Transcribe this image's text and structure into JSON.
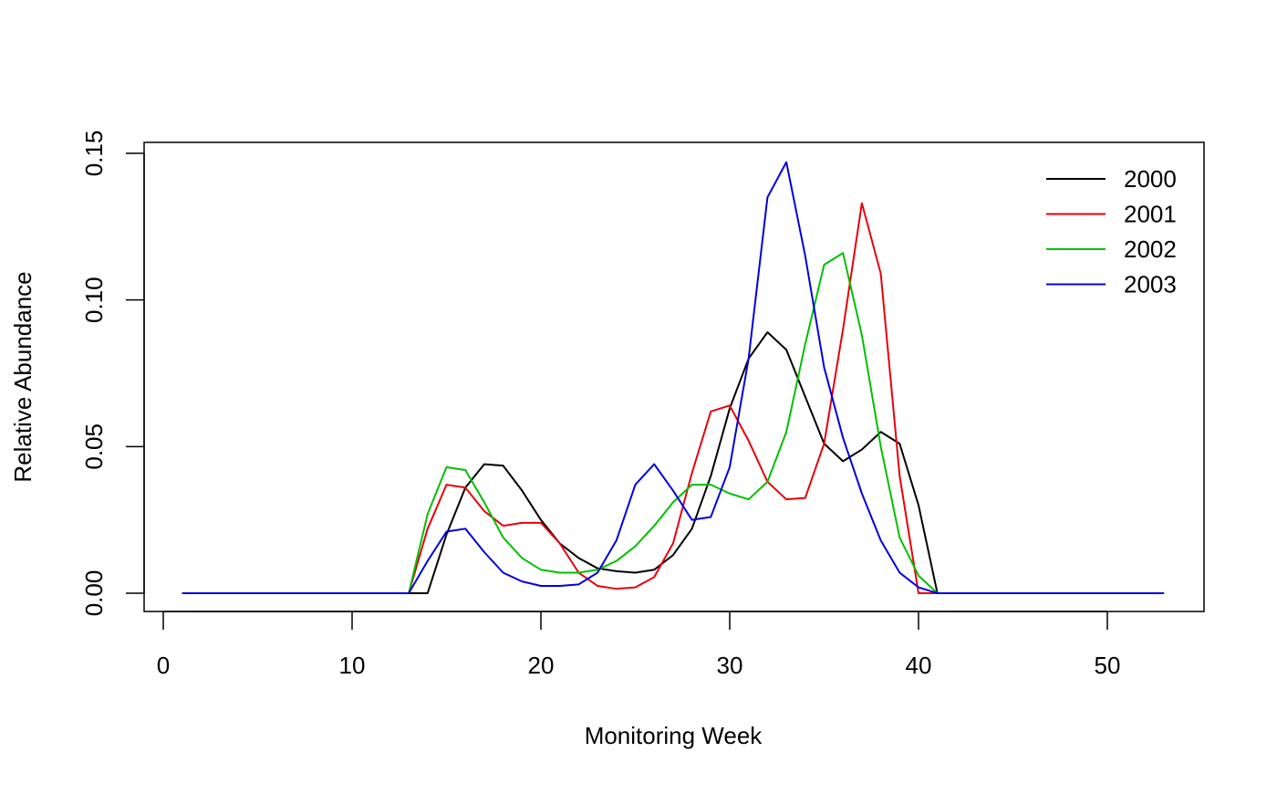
{
  "chart_data": {
    "type": "line",
    "title": "",
    "xlabel": "Monitoring Week",
    "ylabel": "Relative Abundance",
    "xlim": [
      0,
      55
    ],
    "ylim": [
      0,
      0.15
    ],
    "xticks": [
      0,
      10,
      20,
      30,
      40,
      50
    ],
    "yticks": [
      0.0,
      0.05,
      0.1,
      0.15
    ],
    "xtick_labels": [
      "0",
      "10",
      "20",
      "30",
      "40",
      "50"
    ],
    "ytick_labels": [
      "0.00",
      "0.05",
      "0.10",
      "0.15"
    ],
    "grid": false,
    "legend_position": "top-right",
    "x": [
      1,
      2,
      3,
      4,
      5,
      6,
      7,
      8,
      9,
      10,
      11,
      12,
      13,
      14,
      15,
      16,
      17,
      18,
      19,
      20,
      21,
      22,
      23,
      24,
      25,
      26,
      27,
      28,
      29,
      30,
      31,
      32,
      33,
      34,
      35,
      36,
      37,
      38,
      39,
      40,
      41,
      42,
      43,
      44,
      45,
      46,
      47,
      48,
      49,
      50,
      51,
      52,
      53
    ],
    "series": [
      {
        "name": "2000",
        "color": "#000000",
        "values": [
          0,
          0,
          0,
          0,
          0,
          0,
          0,
          0,
          0,
          0,
          0,
          0,
          0,
          0,
          0.02,
          0.036,
          0.044,
          0.0435,
          0.035,
          0.025,
          0.017,
          0.012,
          0.0085,
          0.0075,
          0.007,
          0.008,
          0.013,
          0.022,
          0.04,
          0.063,
          0.08,
          0.089,
          0.083,
          0.067,
          0.051,
          0.045,
          0.049,
          0.055,
          0.051,
          0.03,
          0,
          0,
          0,
          0,
          0,
          0,
          0,
          0,
          0,
          0,
          0,
          0,
          0
        ]
      },
      {
        "name": "2001",
        "color": "#e8000b",
        "values": [
          0,
          0,
          0,
          0,
          0,
          0,
          0,
          0,
          0,
          0,
          0,
          0,
          0,
          0.022,
          0.037,
          0.036,
          0.028,
          0.023,
          0.024,
          0.024,
          0.017,
          0.007,
          0.0025,
          0.0015,
          0.002,
          0.0055,
          0.017,
          0.041,
          0.062,
          0.064,
          0.052,
          0.038,
          0.032,
          0.0325,
          0.051,
          0.09,
          0.133,
          0.109,
          0.04,
          0,
          0,
          0,
          0,
          0,
          0,
          0,
          0,
          0,
          0,
          0,
          0,
          0,
          0
        ]
      },
      {
        "name": "2002",
        "color": "#00c000",
        "values": [
          0,
          0,
          0,
          0,
          0,
          0,
          0,
          0,
          0,
          0,
          0,
          0,
          0,
          0.027,
          0.043,
          0.042,
          0.031,
          0.019,
          0.012,
          0.008,
          0.007,
          0.007,
          0.008,
          0.011,
          0.016,
          0.023,
          0.031,
          0.037,
          0.037,
          0.034,
          0.032,
          0.038,
          0.055,
          0.085,
          0.112,
          0.116,
          0.088,
          0.05,
          0.019,
          0.006,
          0,
          0,
          0,
          0,
          0,
          0,
          0,
          0,
          0,
          0,
          0,
          0,
          0
        ]
      },
      {
        "name": "2003",
        "color": "#0000e0",
        "values": [
          0,
          0,
          0,
          0,
          0,
          0,
          0,
          0,
          0,
          0,
          0,
          0,
          0,
          0.011,
          0.021,
          0.022,
          0.014,
          0.007,
          0.004,
          0.0025,
          0.0025,
          0.003,
          0.007,
          0.018,
          0.037,
          0.044,
          0.035,
          0.025,
          0.026,
          0.043,
          0.08,
          0.135,
          0.147,
          0.115,
          0.077,
          0.053,
          0.034,
          0.018,
          0.007,
          0.002,
          0,
          0,
          0,
          0,
          0,
          0,
          0,
          0,
          0,
          0,
          0,
          0,
          0
        ]
      }
    ]
  }
}
